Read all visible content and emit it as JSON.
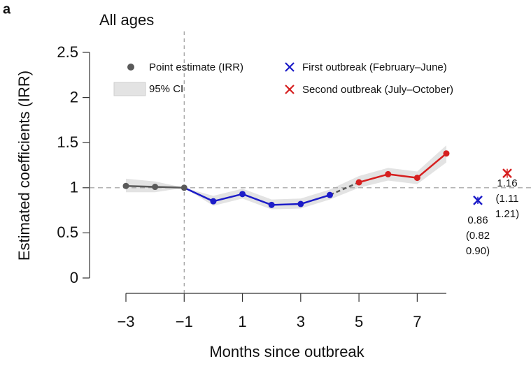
{
  "chart_data": {
    "type": "line",
    "panel_label": "a",
    "title": "All ages",
    "x_label": "Months since outbreak",
    "y_label": "Estimated coefficients (IRR)",
    "x": [
      -3,
      -2,
      -1,
      0,
      1,
      2,
      3,
      4,
      5,
      6,
      7,
      8
    ],
    "values": [
      1.02,
      1.01,
      1.0,
      0.85,
      0.93,
      0.81,
      0.82,
      0.92,
      1.06,
      1.15,
      1.11,
      1.38
    ],
    "ci_lower": [
      0.95,
      0.95,
      1.0,
      0.8,
      0.88,
      0.76,
      0.77,
      0.87,
      1.0,
      1.08,
      1.04,
      1.28
    ],
    "ci_upper": [
      1.1,
      1.07,
      1.0,
      0.91,
      0.99,
      0.87,
      0.88,
      0.98,
      1.13,
      1.22,
      1.18,
      1.47
    ],
    "point_colors": [
      "#5a5a5a",
      "#5a5a5a",
      "#5a5a5a",
      "#1c1cc8",
      "#1c1cc8",
      "#1c1cc8",
      "#1c1cc8",
      "#1c1cc8",
      "#d61f1f",
      "#d61f1f",
      "#d61f1f",
      "#d61f1f"
    ],
    "segment_colors": [
      "#5a5a5a",
      "#5a5a5a",
      "#1c1cc8",
      "#1c1cc8",
      "#1c1cc8",
      "#1c1cc8",
      "#1c1cc8",
      "#5a5a5a",
      "#d61f1f",
      "#d61f1f",
      "#d61f1f"
    ],
    "segment_dashed": [
      false,
      false,
      false,
      false,
      false,
      false,
      false,
      true,
      false,
      false,
      false
    ],
    "ci_color": "#e3e3e3",
    "xlim": [
      -3,
      8
    ],
    "ylim": [
      0,
      2.5
    ],
    "xticks": [
      {
        "value": -3,
        "label": "−3"
      },
      {
        "value": -1,
        "label": "−1"
      },
      1,
      3,
      5,
      7
    ],
    "yticks": [
      0,
      0.5,
      1,
      1.5,
      2,
      2.5
    ],
    "hline": 1,
    "vline": -1,
    "legend": {
      "point": "Point estimate (IRR)",
      "ci": "95% CI"
    },
    "pooled": [
      {
        "name": "First outbreak (February–June)",
        "color": "#1c1cc8",
        "value": 0.86,
        "lower": 0.82,
        "upper": 0.9,
        "labels": [
          "0.86",
          "(0.82",
          "0.90)"
        ]
      },
      {
        "name": "Second outbreak (July–October)",
        "color": "#d61f1f",
        "value": 1.16,
        "lower": 1.11,
        "upper": 1.21,
        "labels": [
          "1.16",
          "(1.11",
          "1.21)"
        ]
      }
    ]
  }
}
